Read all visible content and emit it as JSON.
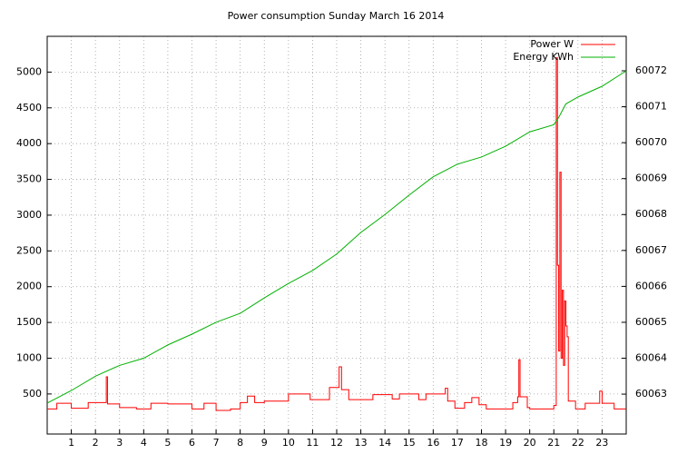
{
  "chart_data": {
    "type": "line",
    "title": "Power consumption Sunday March 16 2014",
    "xlim": [
      0,
      24
    ],
    "xticks": [
      1,
      2,
      3,
      4,
      5,
      6,
      7,
      8,
      9,
      10,
      11,
      12,
      13,
      14,
      15,
      16,
      17,
      18,
      19,
      20,
      21,
      22,
      23
    ],
    "ylim": [
      -60,
      5500
    ],
    "yticks": [
      500,
      1000,
      1500,
      2000,
      2500,
      3000,
      3500,
      4000,
      4500,
      5000
    ],
    "y2lim": [
      60061.89,
      60072.96
    ],
    "y2ticks": [
      60063,
      60064,
      60065,
      60066,
      60067,
      60068,
      60069,
      60070,
      60071,
      60072
    ],
    "grid": true,
    "legend": "top-right",
    "series": [
      {
        "name": "Power W",
        "color": "#ff0000",
        "step": true,
        "x": [
          0,
          0.4,
          1.0,
          1.7,
          2.45,
          2.5,
          3.0,
          3.7,
          4.3,
          5.0,
          6.0,
          6.5,
          7.0,
          7.6,
          8.0,
          8.3,
          8.6,
          9.0,
          10.0,
          10.9,
          11.7,
          12.1,
          12.2,
          12.5,
          13.5,
          14.3,
          14.6,
          15.4,
          15.7,
          16.5,
          16.6,
          16.9,
          17.3,
          17.6,
          17.9,
          18.2,
          19.3,
          19.5,
          19.55,
          19.6,
          19.9,
          20.0,
          21.0,
          21.1,
          21.15,
          21.2,
          21.25,
          21.3,
          21.35,
          21.4,
          21.45,
          21.5,
          21.55,
          21.6,
          21.9,
          22.3,
          22.9,
          23.0,
          23.5,
          24
        ],
        "values": [
          290,
          370,
          300,
          380,
          740,
          360,
          310,
          290,
          370,
          360,
          290,
          370,
          270,
          290,
          380,
          470,
          380,
          400,
          500,
          420,
          590,
          880,
          560,
          420,
          490,
          430,
          500,
          420,
          500,
          580,
          400,
          300,
          380,
          450,
          350,
          290,
          380,
          460,
          980,
          460,
          310,
          290,
          340,
          5200,
          2300,
          1100,
          3600,
          1000,
          1950,
          900,
          1800,
          1450,
          1300,
          400,
          290,
          370,
          540,
          370,
          290,
          290
        ]
      },
      {
        "name": "Energy KWh",
        "color": "#00b000",
        "axis": "y2",
        "x": [
          0,
          1,
          2,
          3,
          4,
          5,
          6,
          7,
          8,
          9,
          10,
          11,
          12,
          13,
          14,
          15,
          16,
          17,
          18,
          19,
          20,
          21,
          21.2,
          21.5,
          22,
          23,
          24
        ],
        "values": [
          60062.75,
          60063.1,
          60063.5,
          60063.8,
          60064.0,
          60064.37,
          60064.67,
          60065.0,
          60065.25,
          60065.68,
          60066.08,
          60066.44,
          60066.9,
          60067.5,
          60068.0,
          60068.54,
          60069.05,
          60069.4,
          60069.6,
          60069.9,
          60070.3,
          60070.5,
          60070.7,
          60071.08,
          60071.27,
          60071.57,
          60072.0
        ]
      }
    ]
  }
}
